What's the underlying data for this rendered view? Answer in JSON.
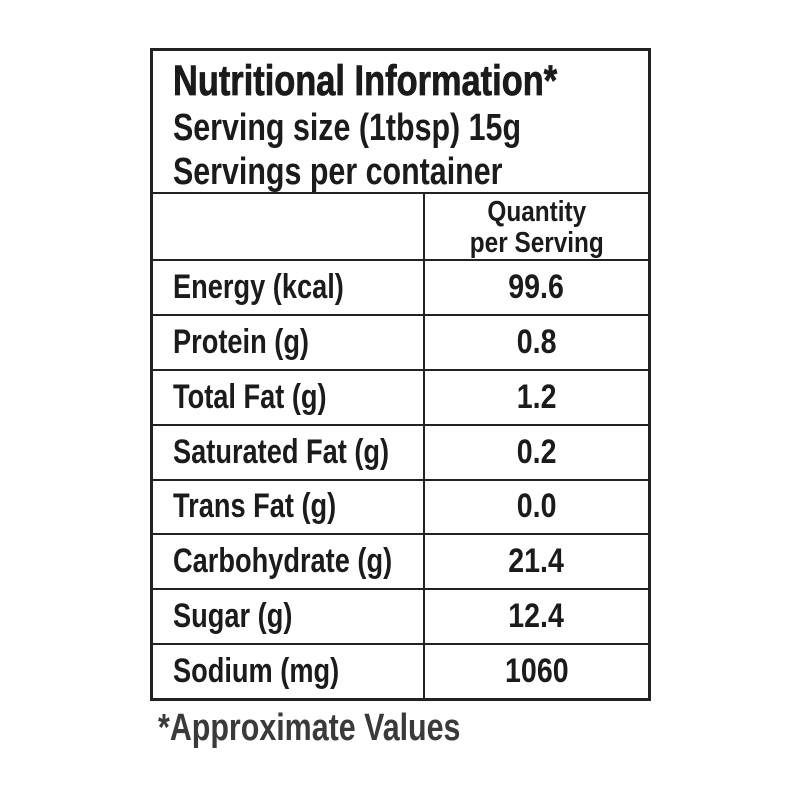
{
  "label": {
    "title": "Nutritional Information*",
    "serving_size": "Serving size (1tbsp) 15g",
    "servings_per_container": "Servings per container",
    "column_header": {
      "line1": "Quantity",
      "line2": "per Serving"
    },
    "rows": [
      {
        "label": "Energy (kcal)",
        "value": "99.6"
      },
      {
        "label": "Protein (g)",
        "value": "0.8"
      },
      {
        "label": "Total Fat (g)",
        "value": "1.2"
      },
      {
        "label": "Saturated Fat (g)",
        "value": "0.2"
      },
      {
        "label": "Trans Fat (g)",
        "value": "0.0"
      },
      {
        "label": "Carbohydrate (g)",
        "value": "21.4"
      },
      {
        "label": "Sugar (g)",
        "value": "12.4"
      },
      {
        "label": "Sodium (mg)",
        "value": "1060"
      }
    ],
    "footnote": "*Approximate Values",
    "colors": {
      "border": "#222222",
      "text": "#1b1b1b",
      "footnote_text": "#3a3a3a",
      "background": "#ffffff"
    }
  }
}
